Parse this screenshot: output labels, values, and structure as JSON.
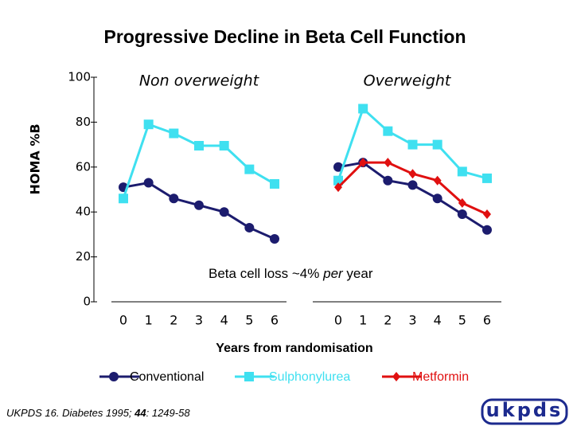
{
  "chart_data": {
    "type": "line",
    "title": "Progressive Decline in Beta Cell Function",
    "ylabel": "HOMA %B",
    "xlabel": "Years from randomisation",
    "ylim": [
      0,
      100
    ],
    "yticks": [
      0,
      20,
      40,
      60,
      80,
      100
    ],
    "panels": [
      {
        "title": "Non overweight",
        "categories": [
          0,
          1,
          2,
          3,
          4,
          5,
          6
        ]
      },
      {
        "title": "Overweight",
        "categories": [
          0,
          1,
          2,
          3,
          4,
          5,
          6
        ]
      }
    ],
    "series": [
      {
        "name": "Conventional",
        "color": "#1c1c6e",
        "marker": "circle",
        "values": [
          [
            51,
            53,
            46,
            43,
            40,
            33,
            28
          ],
          [
            60,
            62,
            54,
            52,
            46,
            39,
            32
          ]
        ]
      },
      {
        "name": "Sulphonylurea",
        "color": "#3fe0f0",
        "marker": "square",
        "values": [
          [
            46,
            79,
            75,
            69.5,
            69.5,
            59,
            52.5
          ],
          [
            54,
            86,
            76,
            70,
            70,
            58,
            55
          ]
        ]
      },
      {
        "name": "Metformin",
        "color": "#e01010",
        "marker": "diamond",
        "values": [
          [
            null,
            null,
            null,
            null,
            null,
            null,
            null
          ],
          [
            51,
            62,
            62,
            57,
            54,
            44,
            39
          ]
        ]
      }
    ],
    "annotation": [
      "Beta cell loss ~4% ",
      "per",
      " year"
    ],
    "citation": [
      "UKPDS 16. Diabetes 1995; ",
      "44",
      ": 1249-58"
    ],
    "logo": "ukpds"
  }
}
